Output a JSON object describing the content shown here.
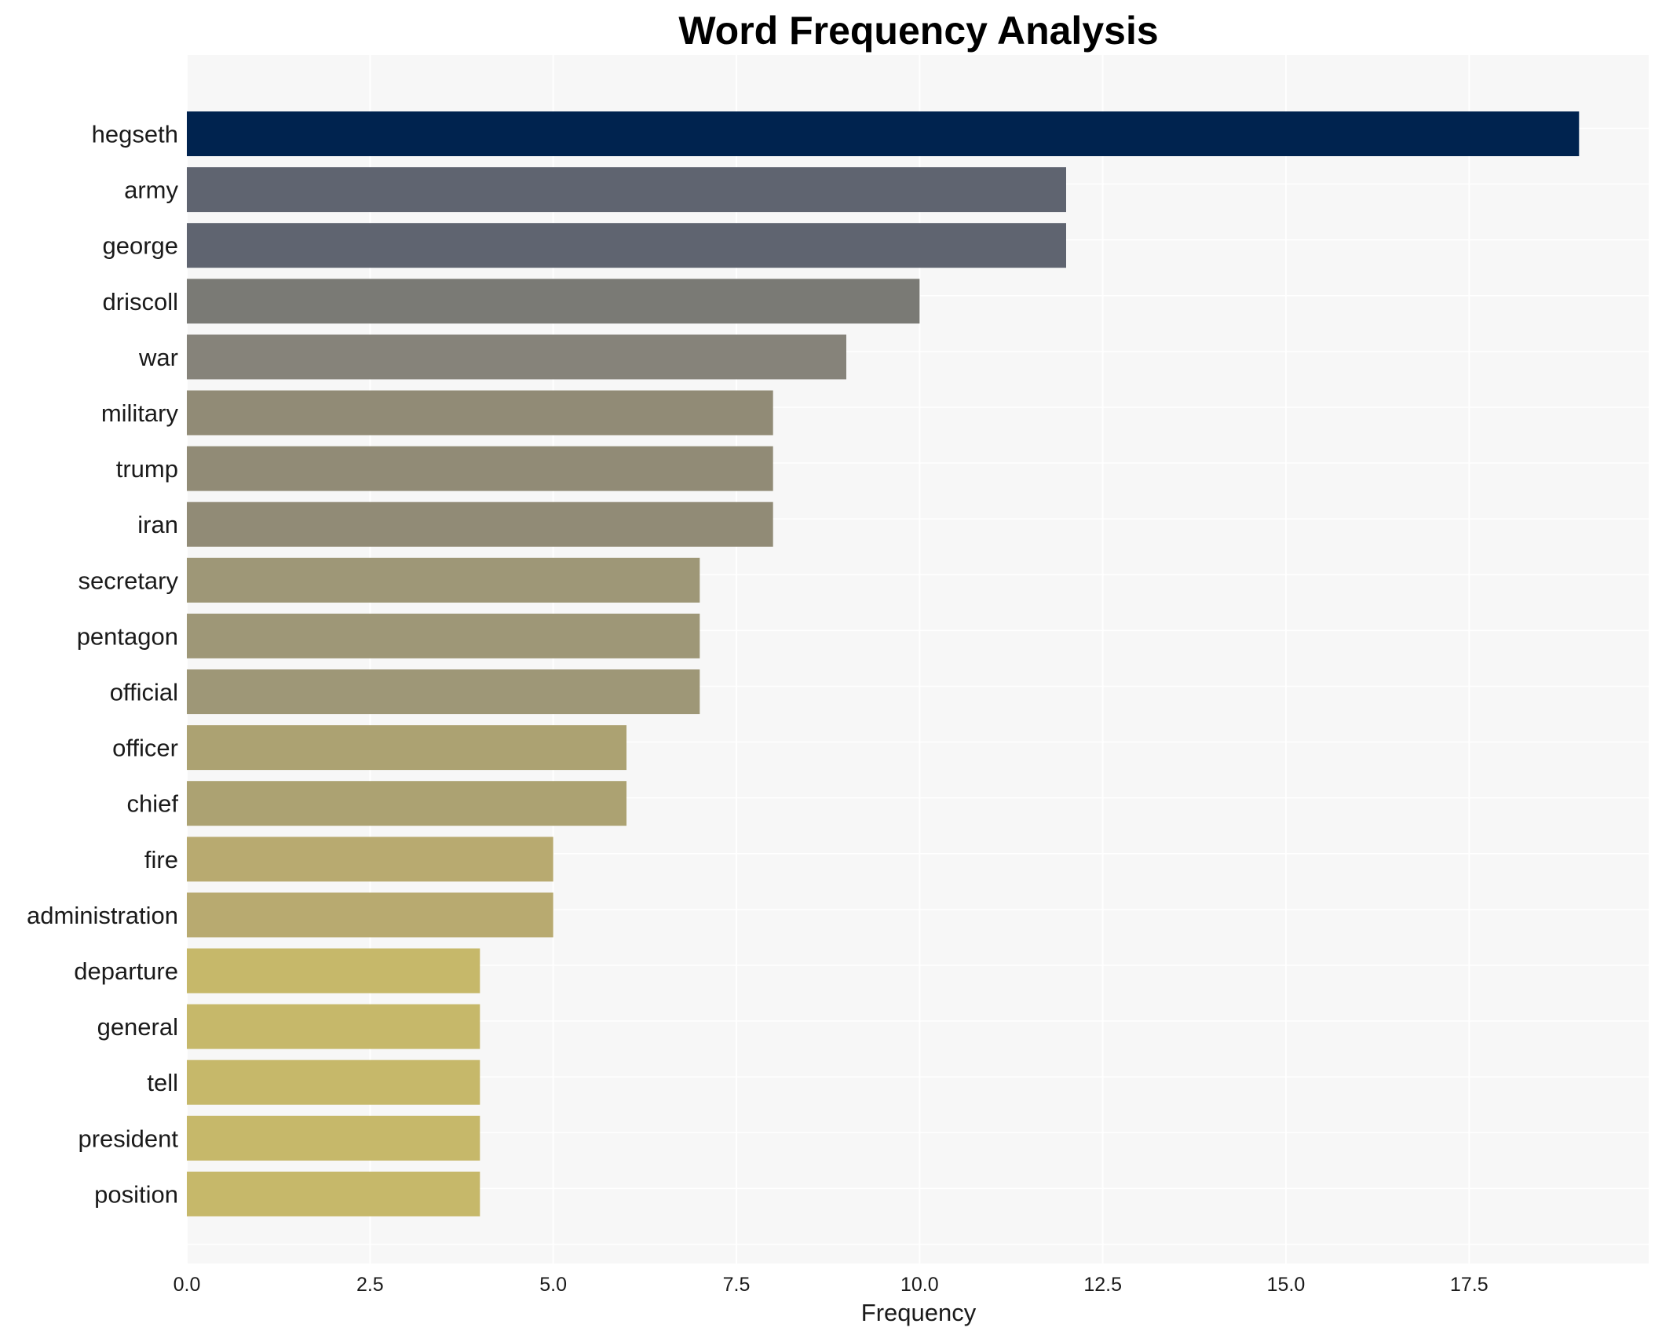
{
  "chart_data": {
    "type": "bar",
    "orientation": "horizontal",
    "title": "Word Frequency Analysis",
    "xlabel": "Frequency",
    "ylabel": "",
    "xlim": [
      0,
      19.95
    ],
    "x_ticks": [
      0.0,
      2.5,
      5.0,
      7.5,
      10.0,
      12.5,
      15.0,
      17.5
    ],
    "x_tick_labels": [
      "0.0",
      "2.5",
      "5.0",
      "7.5",
      "10.0",
      "12.5",
      "15.0",
      "17.5"
    ],
    "grid": true,
    "legend": "none",
    "categories": [
      "hegseth",
      "army",
      "george",
      "driscoll",
      "war",
      "military",
      "trump",
      "iran",
      "secretary",
      "pentagon",
      "official",
      "officer",
      "chief",
      "fire",
      "administration",
      "departure",
      "general",
      "tell",
      "president",
      "position"
    ],
    "values": [
      19,
      12,
      12,
      10,
      9,
      8,
      8,
      8,
      7,
      7,
      7,
      6,
      6,
      5,
      5,
      4,
      4,
      4,
      4,
      4
    ],
    "colors": [
      "#00234f",
      "#5f6470",
      "#5f6470",
      "#7a7a75",
      "#86837a",
      "#918b76",
      "#918b76",
      "#918b76",
      "#9e9777",
      "#9e9777",
      "#9e9777",
      "#aca272",
      "#aca272",
      "#b8aa70",
      "#b8aa70",
      "#c6b86a",
      "#c6b86a",
      "#c6b86a",
      "#c6b86a",
      "#c6b86a"
    ],
    "plot_background": "#f7f7f7",
    "grid_color": "#ffffff"
  }
}
